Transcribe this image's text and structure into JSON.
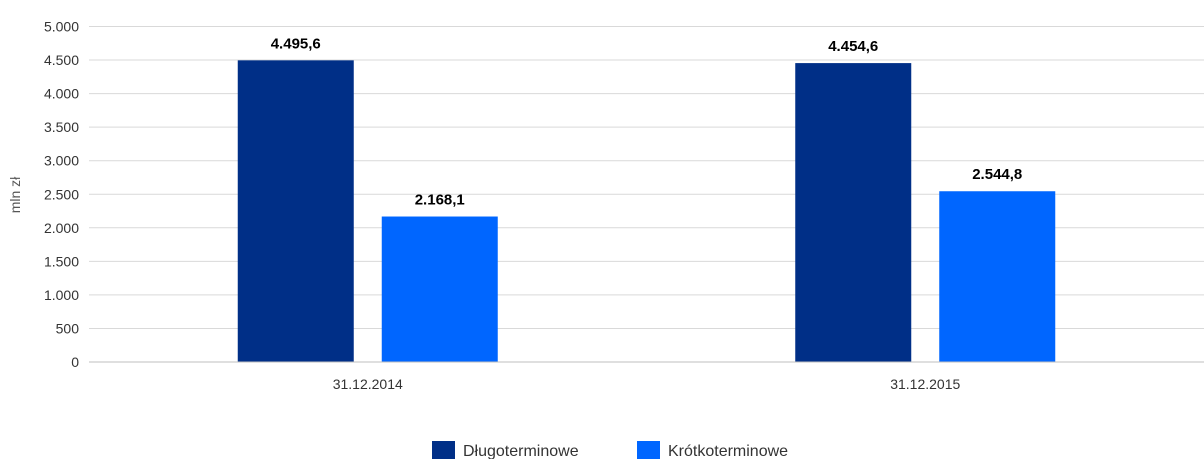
{
  "chart_data": {
    "type": "bar",
    "categories": [
      "31.12.2014",
      "31.12.2015"
    ],
    "series": [
      {
        "name": "Długoterminowe",
        "values": [
          4495.6,
          4454.6
        ],
        "labels": [
          "4.495,6",
          "4.454,6"
        ],
        "color": "#002f87"
      },
      {
        "name": "Krótkoterminowe",
        "values": [
          2168.1,
          2544.8
        ],
        "labels": [
          "2.168,1",
          "2.544,8"
        ],
        "color": "#0066ff"
      }
    ],
    "ylabel": "mln zł",
    "ylim": [
      0,
      5000
    ],
    "yticks": [
      0,
      500,
      1000,
      1500,
      2000,
      2500,
      3000,
      3500,
      4000,
      4500,
      5000
    ],
    "ytick_labels": [
      "0",
      "500",
      "1.000",
      "1.500",
      "2.000",
      "2.500",
      "3.000",
      "3.500",
      "4.000",
      "4.500",
      "5.000"
    ],
    "grid": true,
    "legend_position": "bottom-center"
  }
}
